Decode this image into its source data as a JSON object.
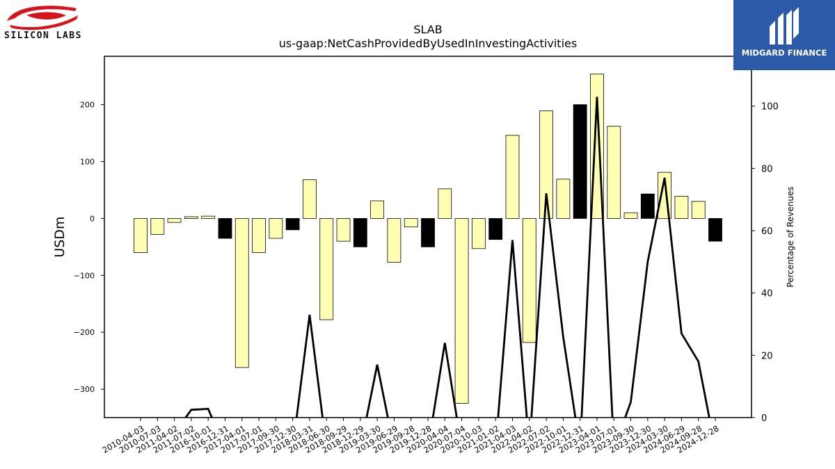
{
  "branding": {
    "left_logo_text": "SILICON LABS",
    "right_logo_text": "MIDGARD FINANCE"
  },
  "colors": {
    "bar_light": "#ffffb3",
    "bar_dark": "#000000",
    "line": "#000000",
    "brand_blue": "#2d5aa8",
    "brand_red": "#d7141b"
  },
  "chart_data": {
    "type": "bar",
    "title": "SLAB",
    "subtitle": "us-gaap:NetCashProvidedByUsedInInvestingActivities",
    "ylabel": "USDm",
    "y2label": "Percentage of Revenues",
    "ylim": [
      -350,
      285
    ],
    "y2lim": [
      0,
      116
    ],
    "yticks": [
      -300,
      -200,
      -100,
      0,
      100,
      200
    ],
    "y2ticks": [
      0,
      20,
      40,
      60,
      80,
      100
    ],
    "categories": [
      "2010-04-03",
      "2010-07-03",
      "2011-04-02",
      "2011-07-02",
      "2016-10-01",
      "2016-12-31",
      "2017-04-01",
      "2017-07-01",
      "2017-09-30",
      "2017-12-30",
      "2018-03-31",
      "2018-06-30",
      "2018-09-29",
      "2018-12-29",
      "2019-03-30",
      "2019-06-29",
      "2019-09-28",
      "2019-12-28",
      "2020-04-04",
      "2020-07-04",
      "2020-10-03",
      "2021-01-02",
      "2021-04-03",
      "2022-04-02",
      "2022-07-02",
      "2022-10-01",
      "2022-12-31",
      "2023-04-01",
      "2023-07-01",
      "2023-09-30",
      "2023-12-30",
      "2024-03-30",
      "2024-06-29",
      "2024-09-28",
      "2024-12-28"
    ],
    "series": [
      {
        "values": [
          -60,
          -28,
          -7,
          3,
          4,
          -35,
          -262,
          -60,
          -35,
          -20,
          68,
          -178,
          -40,
          -50,
          31,
          -77,
          -15,
          -50,
          52,
          -325,
          -53,
          -37,
          146,
          -218,
          189,
          69,
          200,
          254,
          162,
          10,
          43,
          81,
          39,
          30,
          -40
        ],
        "dark": [
          false,
          false,
          false,
          false,
          false,
          true,
          false,
          false,
          false,
          true,
          false,
          false,
          false,
          true,
          false,
          false,
          false,
          true,
          false,
          false,
          false,
          true,
          false,
          false,
          false,
          false,
          true,
          false,
          false,
          false,
          true,
          false,
          false,
          false,
          true
        ]
      },
      {
        "axis": "right",
        "type": "line",
        "values": [
          -10,
          -10,
          -5,
          2.5,
          2.8,
          -10,
          -10,
          -10,
          -10,
          -10,
          33,
          -10,
          -10,
          -10,
          17,
          -10,
          -10,
          -10,
          24,
          -10,
          -10,
          -10,
          57,
          -10,
          72,
          26,
          -10,
          103,
          -10,
          5,
          50,
          77,
          27,
          18,
          -10
        ]
      }
    ]
  }
}
